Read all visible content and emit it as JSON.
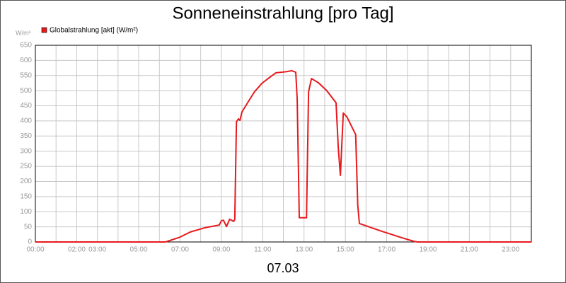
{
  "chart_data": {
    "type": "line",
    "title": "Sonneneinstrahlung [pro Tag]",
    "y_unit": "W/m²",
    "xlabel": "07.03",
    "xlim": [
      0,
      24
    ],
    "xticks": [
      {
        "value": 0,
        "label": "00:00"
      },
      {
        "value": 1,
        "label": null
      },
      {
        "value": 2,
        "label": "02:00"
      },
      {
        "value": 3,
        "label": "03:00"
      },
      {
        "value": 4,
        "label": null
      },
      {
        "value": 5,
        "label": "05:00"
      },
      {
        "value": 6,
        "label": null
      },
      {
        "value": 7,
        "label": "07:00"
      },
      {
        "value": 8,
        "label": null
      },
      {
        "value": 9,
        "label": "09:00"
      },
      {
        "value": 10,
        "label": null
      },
      {
        "value": 11,
        "label": "11:00"
      },
      {
        "value": 12,
        "label": null
      },
      {
        "value": 13,
        "label": "13:00"
      },
      {
        "value": 14,
        "label": null
      },
      {
        "value": 15,
        "label": "15:00"
      },
      {
        "value": 16,
        "label": null
      },
      {
        "value": 17,
        "label": "17:00"
      },
      {
        "value": 18,
        "label": null
      },
      {
        "value": 19,
        "label": "19:00"
      },
      {
        "value": 20,
        "label": null
      },
      {
        "value": 21,
        "label": "21:00"
      },
      {
        "value": 22,
        "label": null
      },
      {
        "value": 23,
        "label": "23:00"
      }
    ],
    "ylim": [
      0,
      650
    ],
    "yticks": [
      0,
      50,
      100,
      150,
      200,
      250,
      300,
      350,
      400,
      450,
      500,
      550,
      600,
      650
    ],
    "grid": true,
    "x": [
      0,
      6.3,
      7.0,
      7.5,
      8.2,
      8.9,
      9.0,
      9.1,
      9.25,
      9.4,
      9.6,
      9.65,
      9.73,
      9.83,
      9.9,
      10.0,
      10.27,
      10.6,
      10.96,
      11.3,
      11.64,
      11.92,
      12.16,
      12.4,
      12.6,
      12.67,
      12.77,
      13.12,
      13.22,
      13.36,
      13.7,
      14.1,
      14.55,
      14.66,
      14.76,
      14.9,
      15.07,
      15.5,
      15.6,
      15.68,
      16.1,
      16.78,
      17.33,
      17.64,
      17.98,
      18.32,
      18.5,
      24
    ],
    "series": [
      {
        "name": "Globalstrahlung [akt] (W/m²)",
        "color": "#e8191c",
        "values": [
          0,
          0,
          16,
          33,
          47,
          56,
          70,
          72,
          51,
          75,
          68,
          75,
          397,
          407,
          402,
          430,
          460,
          496,
          524,
          542,
          559,
          561,
          563,
          566,
          561,
          472,
          80,
          80,
          496,
          540,
          526,
          500,
          460,
          309,
          220,
          426,
          414,
          355,
          122,
          61,
          51,
          35,
          23,
          16,
          9,
          2,
          0,
          0
        ]
      }
    ]
  }
}
